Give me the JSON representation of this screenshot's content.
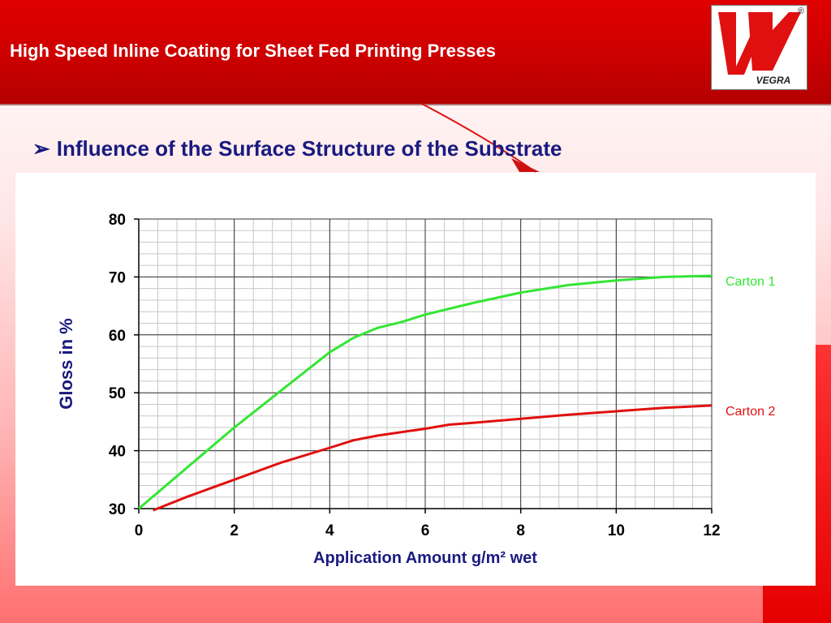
{
  "header": {
    "title": "High Speed Inline Coating for Sheet Fed Printing Presses",
    "logo_text": "VEGRA",
    "registered_mark": "®"
  },
  "slide": {
    "bullet_icon": "arrow-bullet-icon",
    "subtitle": "Influence of the Surface Structure of the Substrate"
  },
  "colors": {
    "header_red": "#cc0000",
    "title_blue": "#1a1a80",
    "carton1": "#33e633",
    "carton2": "#e01010"
  },
  "chart_data": {
    "type": "line",
    "xlabel": "Application Amount g/m² wet",
    "ylabel": "Gloss in %",
    "xlim": [
      0,
      12
    ],
    "ylim": [
      30,
      80
    ],
    "x_ticks": [
      "0",
      "2",
      "4",
      "6",
      "8",
      "10",
      "12"
    ],
    "y_ticks": [
      "30",
      "40",
      "50",
      "60",
      "70",
      "80"
    ],
    "grid": true,
    "legend_placement": "right, labels at line ends",
    "series": [
      {
        "name": "Carton 1",
        "color": "#33e633",
        "x": [
          0,
          1,
          2,
          3,
          4,
          4.5,
          5,
          5.5,
          6,
          7,
          8,
          9,
          10,
          11,
          12
        ],
        "y": [
          30,
          37,
          44,
          50.5,
          57,
          59.5,
          61.2,
          62.2,
          63.5,
          65.5,
          67.3,
          68.6,
          69.4,
          70,
          70.2
        ]
      },
      {
        "name": "Carton 2",
        "color": "#e01010",
        "x": [
          0.3,
          1,
          2,
          3,
          4,
          4.5,
          5,
          6,
          6.5,
          7,
          8,
          9,
          10,
          11,
          12
        ],
        "y": [
          29.7,
          32,
          35,
          38,
          40.5,
          41.8,
          42.6,
          43.8,
          44.5,
          44.8,
          45.5,
          46.2,
          46.8,
          47.4,
          47.8
        ]
      }
    ]
  }
}
